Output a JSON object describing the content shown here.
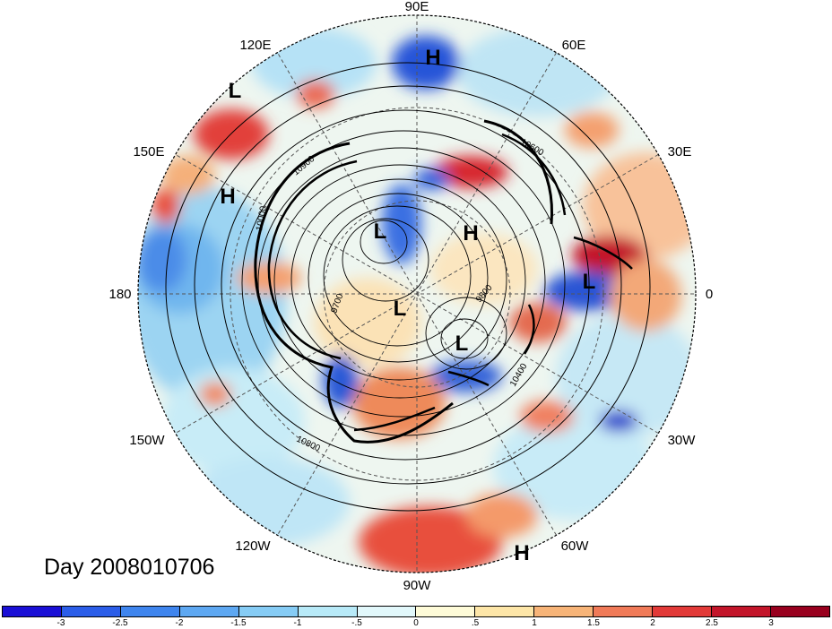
{
  "title": "Day 2008010706",
  "longitude_labels": {
    "lon_90E": "90E",
    "lon_60E": "60E",
    "lon_30E": "30E",
    "lon_0": "0",
    "lon_30W": "30W",
    "lon_60W": "60W",
    "lon_90W": "90W",
    "lon_120W": "120W",
    "lon_150W": "150W",
    "lon_180": "180",
    "lon_150E": "150E",
    "lon_120E": "120E"
  },
  "pressure_centers": {
    "h_top": "H",
    "l_topleft": "L",
    "h_left": "H",
    "l_center_upper": "L",
    "h_center_right": "H",
    "l_center": "L",
    "l_center_lower": "L",
    "l_right": "L",
    "h_bottom": "H"
  },
  "contour_labels": {
    "c10900": "10900",
    "c10400": "10400",
    "c10800": "10800",
    "c9700": "9700",
    "c9800": "9800",
    "c10000": "10000",
    "c10600": "10600"
  },
  "colorbar": {
    "ticks": [
      "-3",
      "-2.5",
      "-2",
      "-1.5",
      "-1",
      "-.5",
      "0",
      ".5",
      "1",
      "1.5",
      "2",
      "2.5",
      "3"
    ],
    "colors": [
      "#1a0fd6",
      "#2b5de8",
      "#3f85ee",
      "#5ea8f2",
      "#86ccf5",
      "#b8eaf8",
      "#e2f8fb",
      "#fefbd8",
      "#fde6a8",
      "#f7b478",
      "#f07a58",
      "#e23a38",
      "#c3152a",
      "#98001e"
    ]
  }
}
